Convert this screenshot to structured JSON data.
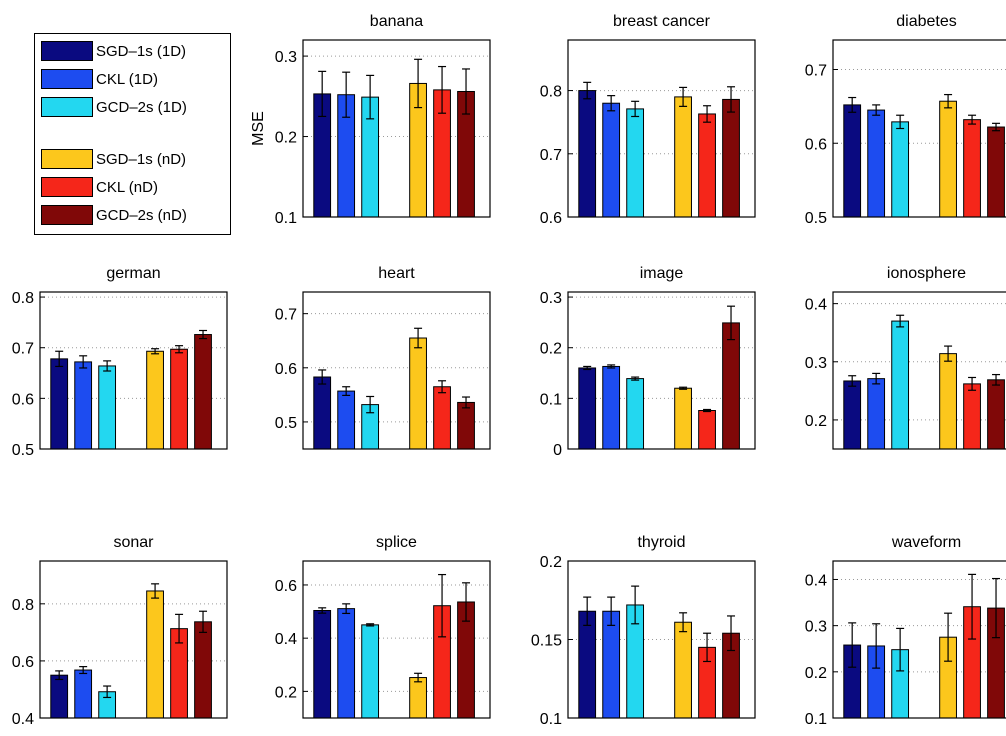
{
  "colors": {
    "SGD-1s (1D)": "#0a0a80",
    "CKL (1D)": "#1d4cf0",
    "GCD-2s (1D)": "#23d7f0",
    "SGD-1s (nD)": "#fcc71c",
    "CKL (nD)": "#f5261a",
    "GCD-2s (nD)": "#800808"
  },
  "legend": {
    "items": [
      {
        "label": "SGD–1s (1D)",
        "series": "SGD-1s (1D)"
      },
      {
        "label": "CKL (1D)",
        "series": "CKL (1D)"
      },
      {
        "label": "GCD–2s (1D)",
        "series": "GCD-2s (1D)"
      },
      {
        "label": "SGD–1s (nD)",
        "series": "SGD-1s (nD)"
      },
      {
        "label": "CKL (nD)",
        "series": "CKL (nD)"
      },
      {
        "label": "GCD–2s (nD)",
        "series": "GCD-2s (nD)"
      }
    ]
  },
  "chart_data": [
    {
      "type": "bar",
      "title": "banana",
      "ylabel": "MSE",
      "ylim": [
        0.1,
        0.32
      ],
      "yticks": [
        "0.1",
        "0.2",
        "0.3"
      ],
      "grid": true,
      "series": [
        {
          "name": "SGD-1s (1D)",
          "value": 0.253,
          "err": 0.028
        },
        {
          "name": "CKL (1D)",
          "value": 0.252,
          "err": 0.028
        },
        {
          "name": "GCD-2s (1D)",
          "value": 0.249,
          "err": 0.027
        },
        {
          "name": "SGD-1s (nD)",
          "value": 0.266,
          "err": 0.03
        },
        {
          "name": "CKL (nD)",
          "value": 0.258,
          "err": 0.029
        },
        {
          "name": "GCD-2s (nD)",
          "value": 0.256,
          "err": 0.028
        }
      ]
    },
    {
      "type": "bar",
      "title": "breast cancer",
      "ylabel": "",
      "ylim": [
        0.6,
        0.88
      ],
      "yticks": [
        "0.6",
        "0.7",
        "0.8"
      ],
      "grid": true,
      "series": [
        {
          "name": "SGD-1s (1D)",
          "value": 0.8,
          "err": 0.013
        },
        {
          "name": "CKL (1D)",
          "value": 0.78,
          "err": 0.012
        },
        {
          "name": "GCD-2s (1D)",
          "value": 0.771,
          "err": 0.012
        },
        {
          "name": "SGD-1s (nD)",
          "value": 0.79,
          "err": 0.015
        },
        {
          "name": "CKL (nD)",
          "value": 0.763,
          "err": 0.013
        },
        {
          "name": "GCD-2s (nD)",
          "value": 0.786,
          "err": 0.02
        }
      ]
    },
    {
      "type": "bar",
      "title": "diabetes",
      "ylabel": "",
      "ylim": [
        0.5,
        0.74
      ],
      "yticks": [
        "0.5",
        "0.6",
        "0.7"
      ],
      "grid": true,
      "series": [
        {
          "name": "SGD-1s (1D)",
          "value": 0.652,
          "err": 0.01
        },
        {
          "name": "CKL (1D)",
          "value": 0.645,
          "err": 0.007
        },
        {
          "name": "GCD-2s (1D)",
          "value": 0.629,
          "err": 0.009
        },
        {
          "name": "SGD-1s (nD)",
          "value": 0.657,
          "err": 0.009
        },
        {
          "name": "CKL (nD)",
          "value": 0.632,
          "err": 0.006
        },
        {
          "name": "GCD-2s (nD)",
          "value": 0.622,
          "err": 0.005
        }
      ]
    },
    {
      "type": "bar",
      "title": "german",
      "ylabel": "",
      "ylim": [
        0.5,
        0.81
      ],
      "yticks": [
        "0.5",
        "0.6",
        "0.7",
        "0.8"
      ],
      "grid": true,
      "series": [
        {
          "name": "SGD-1s (1D)",
          "value": 0.678,
          "err": 0.015
        },
        {
          "name": "CKL (1D)",
          "value": 0.672,
          "err": 0.012
        },
        {
          "name": "GCD-2s (1D)",
          "value": 0.664,
          "err": 0.01
        },
        {
          "name": "SGD-1s (nD)",
          "value": 0.693,
          "err": 0.005
        },
        {
          "name": "CKL (nD)",
          "value": 0.697,
          "err": 0.007
        },
        {
          "name": "GCD-2s (nD)",
          "value": 0.726,
          "err": 0.008
        }
      ]
    },
    {
      "type": "bar",
      "title": "heart",
      "ylabel": "",
      "ylim": [
        0.45,
        0.74
      ],
      "yticks": [
        "0.5",
        "0.6",
        "0.7"
      ],
      "grid": true,
      "series": [
        {
          "name": "SGD-1s (1D)",
          "value": 0.583,
          "err": 0.013
        },
        {
          "name": "CKL (1D)",
          "value": 0.557,
          "err": 0.008
        },
        {
          "name": "GCD-2s (1D)",
          "value": 0.532,
          "err": 0.015
        },
        {
          "name": "SGD-1s (nD)",
          "value": 0.655,
          "err": 0.018
        },
        {
          "name": "CKL (nD)",
          "value": 0.565,
          "err": 0.011
        },
        {
          "name": "GCD-2s (nD)",
          "value": 0.536,
          "err": 0.01
        }
      ]
    },
    {
      "type": "bar",
      "title": "image",
      "ylabel": "",
      "ylim": [
        0,
        0.31
      ],
      "yticks": [
        "0",
        "0.1",
        "0.2",
        "0.3"
      ],
      "grid": true,
      "series": [
        {
          "name": "SGD-1s (1D)",
          "value": 0.16,
          "err": 0.003
        },
        {
          "name": "CKL (1D)",
          "value": 0.163,
          "err": 0.003
        },
        {
          "name": "GCD-2s (1D)",
          "value": 0.139,
          "err": 0.003
        },
        {
          "name": "SGD-1s (nD)",
          "value": 0.12,
          "err": 0.002
        },
        {
          "name": "CKL (nD)",
          "value": 0.076,
          "err": 0.002
        },
        {
          "name": "GCD-2s (nD)",
          "value": 0.249,
          "err": 0.033
        }
      ]
    },
    {
      "type": "bar",
      "title": "ionosphere",
      "ylabel": "",
      "ylim": [
        0.15,
        0.42
      ],
      "yticks": [
        "0.2",
        "0.3",
        "0.4"
      ],
      "grid": true,
      "series": [
        {
          "name": "SGD-1s (1D)",
          "value": 0.267,
          "err": 0.009
        },
        {
          "name": "CKL (1D)",
          "value": 0.271,
          "err": 0.009
        },
        {
          "name": "GCD-2s (1D)",
          "value": 0.37,
          "err": 0.01
        },
        {
          "name": "SGD-1s (nD)",
          "value": 0.314,
          "err": 0.013
        },
        {
          "name": "CKL (nD)",
          "value": 0.262,
          "err": 0.011
        },
        {
          "name": "GCD-2s (nD)",
          "value": 0.269,
          "err": 0.009
        }
      ]
    },
    {
      "type": "bar",
      "title": "sonar",
      "ylabel": "",
      "ylim": [
        0.4,
        0.95
      ],
      "yticks": [
        "0.4",
        "0.6",
        "0.8"
      ],
      "grid": true,
      "series": [
        {
          "name": "SGD-1s (1D)",
          "value": 0.55,
          "err": 0.015
        },
        {
          "name": "CKL (1D)",
          "value": 0.568,
          "err": 0.012
        },
        {
          "name": "GCD-2s (1D)",
          "value": 0.492,
          "err": 0.02
        },
        {
          "name": "SGD-1s (nD)",
          "value": 0.845,
          "err": 0.025
        },
        {
          "name": "CKL (nD)",
          "value": 0.713,
          "err": 0.05
        },
        {
          "name": "GCD-2s (nD)",
          "value": 0.737,
          "err": 0.037
        }
      ]
    },
    {
      "type": "bar",
      "title": "splice",
      "ylabel": "",
      "ylim": [
        0.1,
        0.69
      ],
      "yticks": [
        "0.2",
        "0.4",
        "0.6"
      ],
      "grid": true,
      "series": [
        {
          "name": "SGD-1s (1D)",
          "value": 0.504,
          "err": 0.01
        },
        {
          "name": "CKL (1D)",
          "value": 0.511,
          "err": 0.018
        },
        {
          "name": "GCD-2s (1D)",
          "value": 0.45,
          "err": 0.004
        },
        {
          "name": "SGD-1s (nD)",
          "value": 0.252,
          "err": 0.016
        },
        {
          "name": "CKL (nD)",
          "value": 0.522,
          "err": 0.117
        },
        {
          "name": "GCD-2s (nD)",
          "value": 0.536,
          "err": 0.072
        }
      ]
    },
    {
      "type": "bar",
      "title": "thyroid",
      "ylabel": "",
      "ylim": [
        0.1,
        0.2
      ],
      "yticks": [
        "0.1",
        "0.15",
        "0.2"
      ],
      "grid": true,
      "series": [
        {
          "name": "SGD-1s (1D)",
          "value": 0.168,
          "err": 0.009
        },
        {
          "name": "CKL (1D)",
          "value": 0.168,
          "err": 0.009
        },
        {
          "name": "GCD-2s (1D)",
          "value": 0.172,
          "err": 0.012
        },
        {
          "name": "SGD-1s (nD)",
          "value": 0.161,
          "err": 0.006
        },
        {
          "name": "CKL (nD)",
          "value": 0.145,
          "err": 0.009
        },
        {
          "name": "GCD-2s (nD)",
          "value": 0.154,
          "err": 0.011
        }
      ]
    },
    {
      "type": "bar",
      "title": "waveform",
      "ylabel": "",
      "ylim": [
        0.1,
        0.44
      ],
      "yticks": [
        "0.1",
        "0.2",
        "0.3",
        "0.4"
      ],
      "grid": true,
      "series": [
        {
          "name": "SGD-1s (1D)",
          "value": 0.258,
          "err": 0.048
        },
        {
          "name": "CKL (1D)",
          "value": 0.256,
          "err": 0.048
        },
        {
          "name": "GCD-2s (1D)",
          "value": 0.248,
          "err": 0.046
        },
        {
          "name": "SGD-1s (nD)",
          "value": 0.275,
          "err": 0.052
        },
        {
          "name": "CKL (nD)",
          "value": 0.341,
          "err": 0.07
        },
        {
          "name": "GCD-2s (nD)",
          "value": 0.338,
          "err": 0.064
        }
      ]
    }
  ]
}
